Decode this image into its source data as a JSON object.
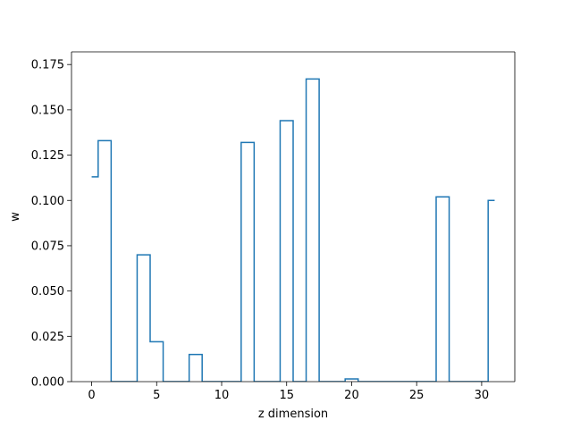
{
  "chart_data": {
    "type": "line",
    "step": "mid",
    "title": "",
    "xlabel": "z dimension",
    "ylabel": "w",
    "xlim": [
      -1.55,
      32.55
    ],
    "ylim": [
      0,
      0.182
    ],
    "xticks": [
      0,
      5,
      10,
      15,
      20,
      25,
      30
    ],
    "xtick_labels": [
      "0",
      "5",
      "10",
      "15",
      "20",
      "25",
      "30"
    ],
    "yticks": [
      0,
      0.025,
      0.05,
      0.075,
      0.1,
      0.125,
      0.15,
      0.175
    ],
    "ytick_labels": [
      "0.000",
      "0.025",
      "0.050",
      "0.075",
      "0.100",
      "0.125",
      "0.150",
      "0.175"
    ],
    "grid": false,
    "line_color": "#1f77b4",
    "series": [
      {
        "x": [
          0,
          1,
          2,
          3,
          4,
          5,
          6,
          7,
          8,
          9,
          10,
          11,
          12,
          13,
          14,
          15,
          16,
          17,
          18,
          19,
          20,
          21,
          22,
          23,
          24,
          25,
          26,
          27,
          28,
          29,
          30,
          31
        ],
        "values": [
          0.113,
          0.133,
          0,
          0,
          0.07,
          0.022,
          0,
          0,
          0.015,
          0,
          0,
          0,
          0.132,
          0,
          0,
          0.144,
          0,
          0.167,
          0,
          0,
          0.0015,
          0,
          0,
          0,
          0,
          0,
          0,
          0.102,
          0,
          0,
          0,
          0.1
        ]
      }
    ]
  }
}
